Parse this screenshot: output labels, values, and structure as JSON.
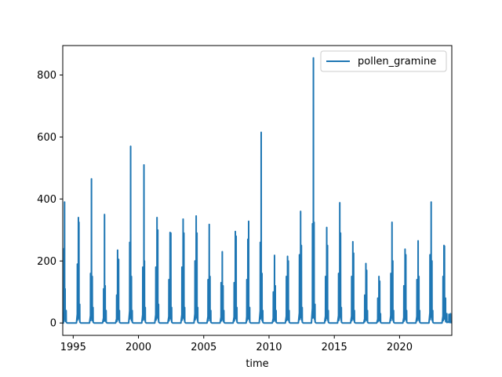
{
  "chart_data": {
    "type": "line",
    "title": "",
    "xlabel": "time",
    "ylabel": "",
    "xlim": [
      1994.2,
      2024.0
    ],
    "ylim": [
      -40,
      895
    ],
    "x_ticks": [
      1995,
      2000,
      2005,
      2010,
      2015,
      2020
    ],
    "y_ticks": [
      0,
      200,
      400,
      600,
      800
    ],
    "grid": false,
    "legend": {
      "position": "top-right"
    },
    "series": [
      {
        "name": "pollen_gramine",
        "color": "#1f77b4",
        "seasons": [
          {
            "start": 1994.25,
            "peaks": [
              [
                1994.3,
                240
              ],
              [
                1994.34,
                390
              ],
              [
                1994.38,
                110
              ],
              [
                1994.46,
                40
              ]
            ]
          },
          {
            "start": 1995.25,
            "peaks": [
              [
                1995.32,
                190
              ],
              [
                1995.4,
                340
              ],
              [
                1995.44,
                325
              ],
              [
                1995.5,
                60
              ]
            ]
          },
          {
            "start": 1996.25,
            "peaks": [
              [
                1996.33,
                160
              ],
              [
                1996.4,
                465
              ],
              [
                1996.46,
                150
              ],
              [
                1996.52,
                50
              ]
            ]
          },
          {
            "start": 1997.25,
            "peaks": [
              [
                1997.33,
                110
              ],
              [
                1997.4,
                350
              ],
              [
                1997.45,
                120
              ],
              [
                1997.52,
                40
              ]
            ]
          },
          {
            "start": 1998.25,
            "peaks": [
              [
                1998.33,
                90
              ],
              [
                1998.4,
                235
              ],
              [
                1998.48,
                205
              ],
              [
                1998.54,
                40
              ]
            ]
          },
          {
            "start": 1999.25,
            "peaks": [
              [
                1999.33,
                260
              ],
              [
                1999.4,
                570
              ],
              [
                1999.46,
                150
              ],
              [
                1999.52,
                40
              ]
            ]
          },
          {
            "start": 2000.25,
            "peaks": [
              [
                2000.33,
                180
              ],
              [
                2000.42,
                510
              ],
              [
                2000.46,
                200
              ],
              [
                2000.52,
                50
              ]
            ]
          },
          {
            "start": 2001.25,
            "peaks": [
              [
                2001.33,
                180
              ],
              [
                2001.42,
                340
              ],
              [
                2001.48,
                300
              ],
              [
                2001.54,
                60
              ]
            ]
          },
          {
            "start": 2002.25,
            "peaks": [
              [
                2002.33,
                140
              ],
              [
                2002.42,
                292
              ],
              [
                2002.48,
                290
              ],
              [
                2002.54,
                50
              ]
            ]
          },
          {
            "start": 2003.25,
            "peaks": [
              [
                2003.33,
                180
              ],
              [
                2003.42,
                335
              ],
              [
                2003.48,
                290
              ],
              [
                2003.54,
                50
              ]
            ]
          },
          {
            "start": 2004.25,
            "peaks": [
              [
                2004.33,
                200
              ],
              [
                2004.42,
                345
              ],
              [
                2004.48,
                290
              ],
              [
                2004.54,
                50
              ]
            ]
          },
          {
            "start": 2005.25,
            "peaks": [
              [
                2005.33,
                140
              ],
              [
                2005.42,
                318
              ],
              [
                2005.48,
                150
              ],
              [
                2005.54,
                40
              ]
            ]
          },
          {
            "start": 2006.25,
            "peaks": [
              [
                2006.33,
                130
              ],
              [
                2006.42,
                230
              ],
              [
                2006.48,
                120
              ],
              [
                2006.54,
                40
              ]
            ]
          },
          {
            "start": 2007.25,
            "peaks": [
              [
                2007.33,
                130
              ],
              [
                2007.42,
                295
              ],
              [
                2007.48,
                280
              ],
              [
                2007.54,
                50
              ]
            ]
          },
          {
            "start": 2008.25,
            "peaks": [
              [
                2008.3,
                140
              ],
              [
                2008.38,
                270
              ],
              [
                2008.44,
                328
              ],
              [
                2008.52,
                50
              ]
            ]
          },
          {
            "start": 2009.25,
            "peaks": [
              [
                2009.33,
                260
              ],
              [
                2009.4,
                615
              ],
              [
                2009.46,
                160
              ],
              [
                2009.52,
                40
              ]
            ]
          },
          {
            "start": 2010.25,
            "peaks": [
              [
                2010.33,
                100
              ],
              [
                2010.42,
                218
              ],
              [
                2010.48,
                120
              ],
              [
                2010.54,
                40
              ]
            ]
          },
          {
            "start": 2011.25,
            "peaks": [
              [
                2011.33,
                150
              ],
              [
                2011.42,
                215
              ],
              [
                2011.48,
                200
              ],
              [
                2011.54,
                40
              ]
            ]
          },
          {
            "start": 2012.25,
            "peaks": [
              [
                2012.33,
                220
              ],
              [
                2012.42,
                360
              ],
              [
                2012.48,
                250
              ],
              [
                2012.54,
                50
              ]
            ]
          },
          {
            "start": 2013.25,
            "peaks": [
              [
                2013.33,
                320
              ],
              [
                2013.4,
                855
              ],
              [
                2013.45,
                325
              ],
              [
                2013.52,
                60
              ]
            ]
          },
          {
            "start": 2014.25,
            "peaks": [
              [
                2014.33,
                150
              ],
              [
                2014.42,
                308
              ],
              [
                2014.48,
                250
              ],
              [
                2014.54,
                40
              ]
            ]
          },
          {
            "start": 2015.25,
            "peaks": [
              [
                2015.33,
                160
              ],
              [
                2015.42,
                388
              ],
              [
                2015.48,
                290
              ],
              [
                2015.54,
                50
              ]
            ]
          },
          {
            "start": 2016.25,
            "peaks": [
              [
                2016.33,
                150
              ],
              [
                2016.42,
                262
              ],
              [
                2016.48,
                225
              ],
              [
                2016.54,
                40
              ]
            ]
          },
          {
            "start": 2017.25,
            "peaks": [
              [
                2017.33,
                90
              ],
              [
                2017.42,
                192
              ],
              [
                2017.48,
                170
              ],
              [
                2017.54,
                40
              ]
            ]
          },
          {
            "start": 2018.25,
            "peaks": [
              [
                2018.33,
                80
              ],
              [
                2018.42,
                150
              ],
              [
                2018.48,
                135
              ],
              [
                2018.54,
                30
              ]
            ]
          },
          {
            "start": 2019.25,
            "peaks": [
              [
                2019.33,
                160
              ],
              [
                2019.42,
                325
              ],
              [
                2019.48,
                200
              ],
              [
                2019.54,
                40
              ]
            ]
          },
          {
            "start": 2020.25,
            "peaks": [
              [
                2020.33,
                120
              ],
              [
                2020.42,
                238
              ],
              [
                2020.48,
                220
              ],
              [
                2020.54,
                40
              ]
            ]
          },
          {
            "start": 2021.25,
            "peaks": [
              [
                2021.33,
                140
              ],
              [
                2021.42,
                265
              ],
              [
                2021.48,
                150
              ],
              [
                2021.54,
                40
              ]
            ]
          },
          {
            "start": 2022.25,
            "peaks": [
              [
                2022.33,
                220
              ],
              [
                2022.42,
                390
              ],
              [
                2022.48,
                200
              ],
              [
                2022.54,
                40
              ]
            ]
          },
          {
            "start": 2023.25,
            "peaks": [
              [
                2023.33,
                150
              ],
              [
                2023.4,
                250
              ],
              [
                2023.44,
                248
              ],
              [
                2023.52,
                80
              ],
              [
                2023.62,
                30
              ],
              [
                2023.78,
                28
              ],
              [
                2023.9,
                30
              ],
              [
                2024.0,
                5
              ]
            ]
          }
        ]
      }
    ]
  }
}
